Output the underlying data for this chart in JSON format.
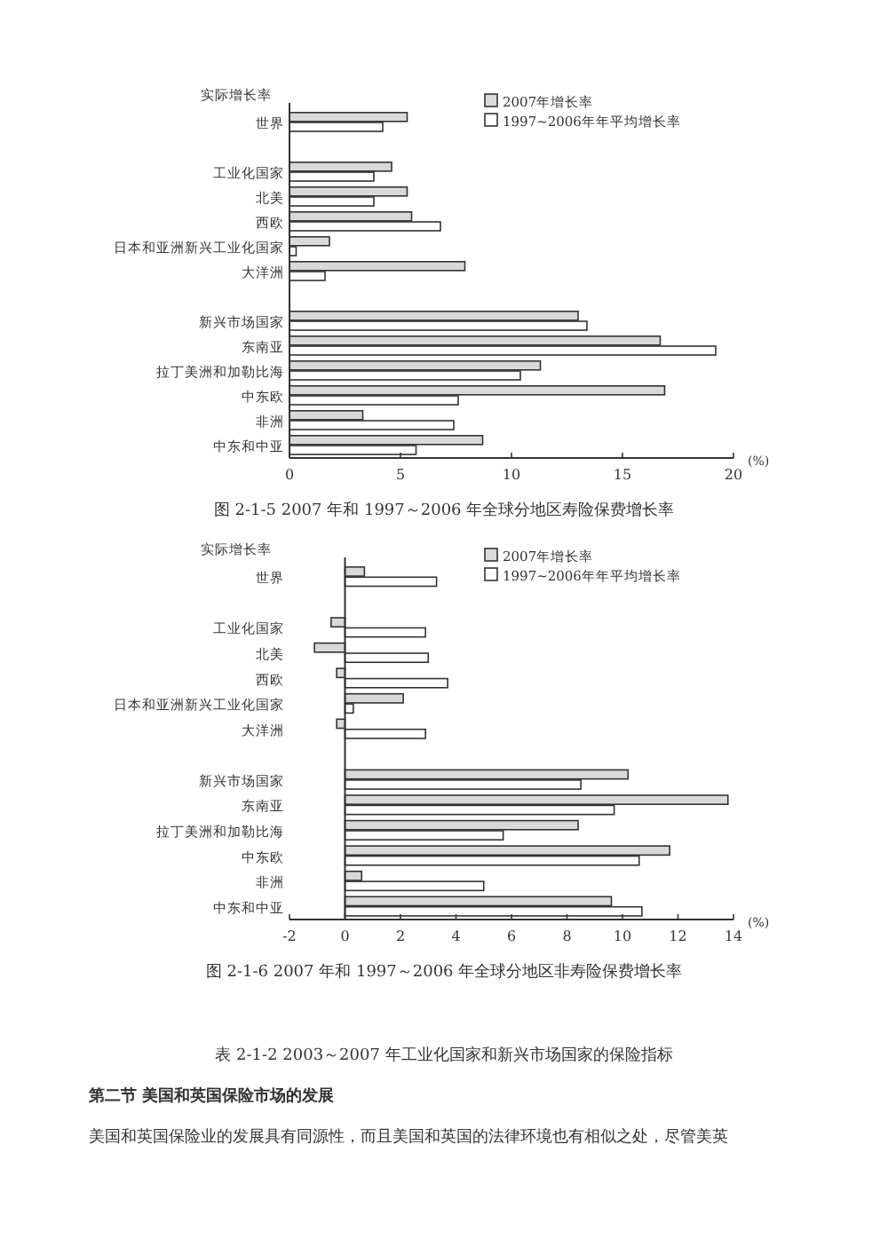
{
  "chart_data": [
    {
      "type": "bar",
      "orientation": "horizontal",
      "title": "图 2-1-5 2007 年和 1997～2006 年全球分地区寿险保费增长率",
      "ylabel": "实际增长率",
      "xlabel": "(%)",
      "categories": [
        "世界",
        null,
        "工业化国家",
        "北美",
        "西欧",
        "日本和亚洲新兴工业化国家",
        "大洋洲",
        null,
        "新兴市场国家",
        "东南亚",
        "拉丁美洲和加勒比海",
        "中东欧",
        "非洲",
        "中东和中亚"
      ],
      "series": [
        {
          "name": "2007年增长率",
          "color": "#d9d9d9",
          "values": [
            5.3,
            null,
            4.6,
            5.3,
            5.5,
            1.8,
            7.9,
            null,
            13.0,
            16.7,
            11.3,
            16.9,
            3.3,
            8.7
          ]
        },
        {
          "name": "1997~2006年年平均增长率",
          "color": "#ffffff",
          "values": [
            4.2,
            null,
            3.8,
            3.8,
            6.8,
            0.3,
            1.6,
            null,
            13.4,
            19.2,
            10.4,
            7.6,
            7.4,
            5.7
          ]
        }
      ],
      "xlim": [
        0,
        20
      ],
      "xticks": [
        0,
        5,
        10,
        15,
        20
      ],
      "legend": "top right",
      "grid": false
    },
    {
      "type": "bar",
      "orientation": "horizontal",
      "title": "图 2-1-6 2007 年和 1997～2006 年全球分地区非寿险保费增长率",
      "ylabel": "实际增长率",
      "xlabel": "(%)",
      "categories": [
        "世界",
        null,
        "工业化国家",
        "北美",
        "西欧",
        "日本和亚洲新兴工业化国家",
        "大洋洲",
        null,
        "新兴市场国家",
        "东南亚",
        "拉丁美洲和加勒比海",
        "中东欧",
        "非洲",
        "中东和中亚"
      ],
      "series": [
        {
          "name": "2007年增长率",
          "color": "#d9d9d9",
          "values": [
            0.7,
            null,
            -0.5,
            -1.1,
            -0.3,
            2.1,
            -0.3,
            null,
            10.2,
            13.8,
            8.4,
            11.7,
            0.6,
            9.6
          ]
        },
        {
          "name": "1997~2006年年平均增长率",
          "color": "#ffffff",
          "values": [
            3.3,
            null,
            2.9,
            3.0,
            3.7,
            0.3,
            2.9,
            null,
            8.5,
            9.7,
            5.7,
            10.6,
            5.0,
            10.7
          ]
        }
      ],
      "xlim": [
        -2,
        14
      ],
      "xticks": [
        -2,
        0,
        2,
        4,
        6,
        8,
        10,
        12,
        14
      ],
      "legend": "top right",
      "grid": false,
      "ref_lines": [
        {
          "axis": "x",
          "value": 0
        }
      ],
      "annotations": [
        "表 2-1-2 2003～2007 年工业化国家和新兴市场国家的保险指标",
        "第二节 美国和英国保险市场的发展",
        "美国和英国保险业的发展具有同源性，而且美国和英国的法律环境也有相似之处，尽管美英"
      ]
    }
  ]
}
